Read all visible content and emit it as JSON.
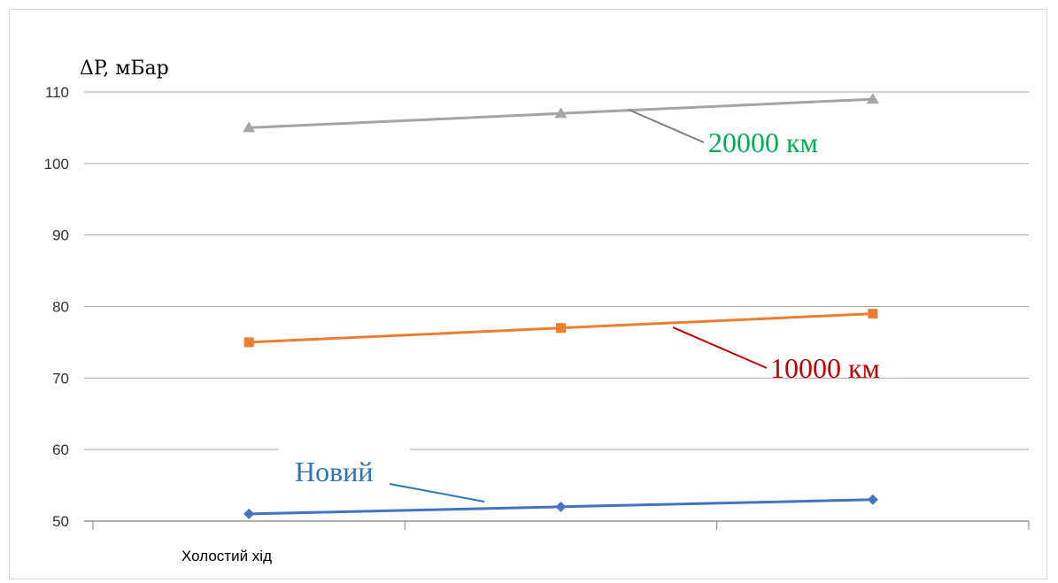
{
  "chart_data": {
    "type": "line",
    "ylabel": "ΔP, мБар",
    "ylim": [
      50,
      110
    ],
    "yticks": [
      50,
      60,
      70,
      80,
      90,
      100,
      110
    ],
    "categories": [
      "Холостий хід",
      "",
      ""
    ],
    "grid": true,
    "series": [
      {
        "name": "Новий",
        "values": [
          51,
          52,
          53
        ],
        "color": "#4472C4",
        "marker": "diamond",
        "label_color": "#2E75B6"
      },
      {
        "name": "10000 км",
        "values": [
          75,
          77,
          79
        ],
        "color": "#ED7D31",
        "marker": "square",
        "label_color": "#C00000"
      },
      {
        "name": "20000 км",
        "values": [
          105,
          107,
          109
        ],
        "color": "#A5A5A5",
        "marker": "triangle",
        "label_color": "#00B050"
      }
    ]
  }
}
